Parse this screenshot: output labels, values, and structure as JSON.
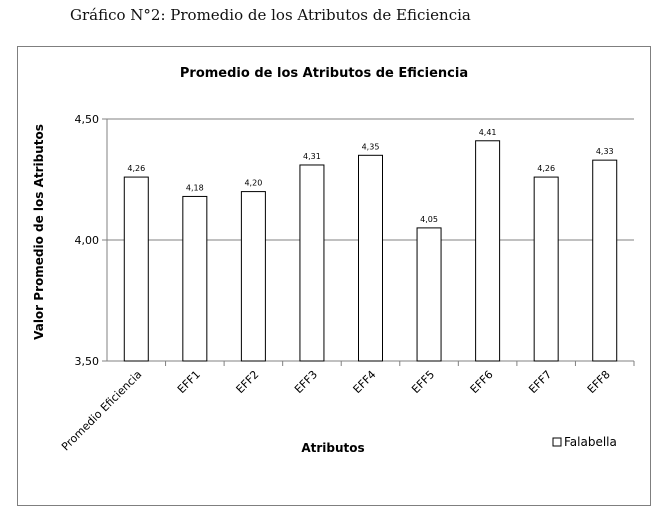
{
  "caption": "Gráfico N°2: Promedio de los Atributos de Eficiencia",
  "chart_data": {
    "type": "bar",
    "title": "Promedio de los Atributos de Eficiencia",
    "xlabel": "Atributos",
    "ylabel": "Valor Promedio de los Atributos",
    "categories": [
      "Promedio Eficiencia",
      "EFF1",
      "EFF2",
      "EFF3",
      "EFF4",
      "EFF5",
      "EFF6",
      "EFF7",
      "EFF8"
    ],
    "series": [
      {
        "name": "Falabella",
        "values": [
          4.26,
          4.18,
          4.2,
          4.31,
          4.35,
          4.05,
          4.41,
          4.26,
          4.33
        ],
        "labels": [
          "4,26",
          "4,18",
          "4,20",
          "4,31",
          "4,35",
          "4,05",
          "4,41",
          "4,26",
          "4,33"
        ]
      }
    ],
    "ylim": [
      3.5,
      4.5
    ],
    "yticks": [
      3.5,
      4.0,
      4.5
    ],
    "ytick_labels": [
      "3,50",
      "4,00",
      "4,50"
    ],
    "grid": true,
    "legend": "bottom-right",
    "colors": {
      "bar_fill": "#ffffff",
      "bar_stroke": "#000000",
      "grid": "#808080"
    }
  }
}
